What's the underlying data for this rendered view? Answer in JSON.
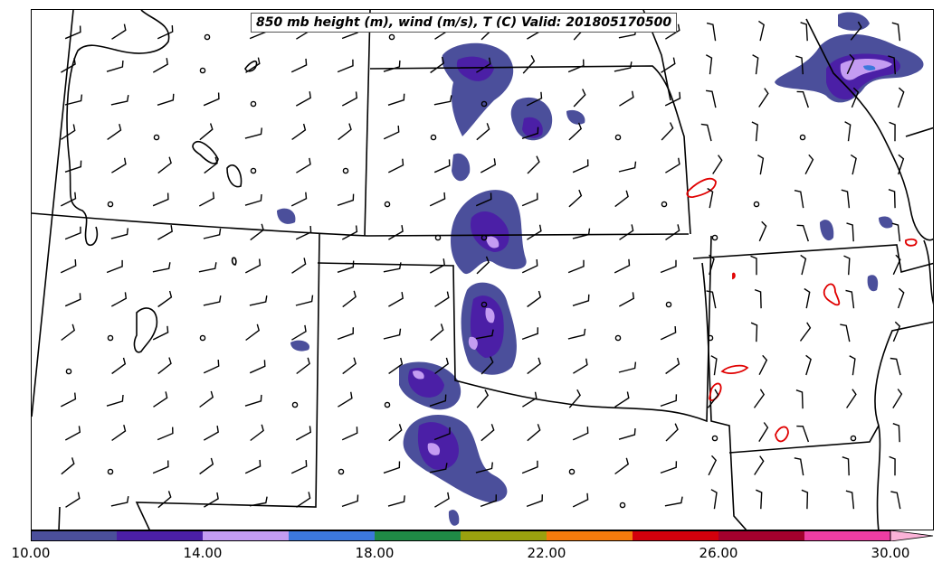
{
  "title": "850 mb height (m), wind (m/s), T (C) Valid: 201805170500",
  "colorbar": {
    "colors": [
      "#4b4f9b",
      "#4b1fa6",
      "#c49cf2",
      "#3c78dc",
      "#1f8a46",
      "#9aa10e",
      "#f57b0c",
      "#d2000c",
      "#a3002d",
      "#ee3da3",
      "#fbb3d8"
    ],
    "tick_labels": [
      "10.00",
      "14.00",
      "18.00",
      "22.00",
      "26.00",
      "30.00"
    ],
    "extend": "max"
  },
  "colors": {
    "boundary": "#000000",
    "contour_red": "#e00000",
    "barb": "#000000"
  }
}
